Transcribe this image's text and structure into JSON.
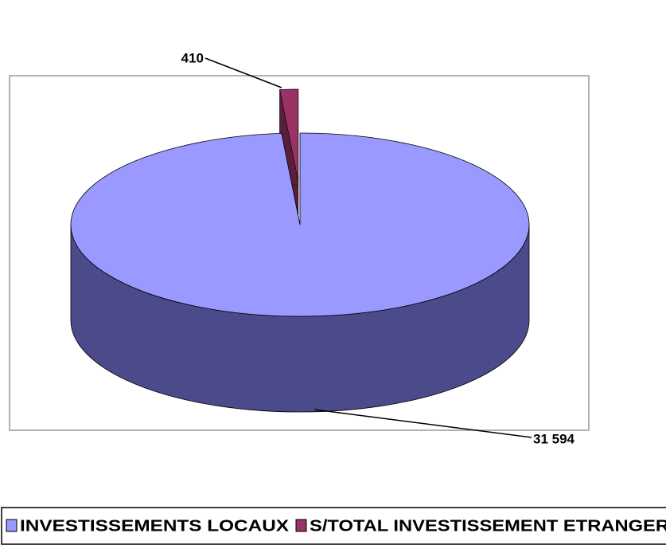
{
  "chart_data": {
    "type": "pie3d",
    "categories": [
      "INVESTISSEMENTS LOCAUX",
      "S/TOTAL INVESTISSEMENT ETRANGER"
    ],
    "values": [
      31594,
      410
    ],
    "value_labels": [
      "31 594",
      "410"
    ],
    "colors": [
      "#9999ff",
      "#993366"
    ],
    "side_colors": [
      "#4b4b8c",
      "#5a1e3c"
    ],
    "legend": "bottom"
  }
}
